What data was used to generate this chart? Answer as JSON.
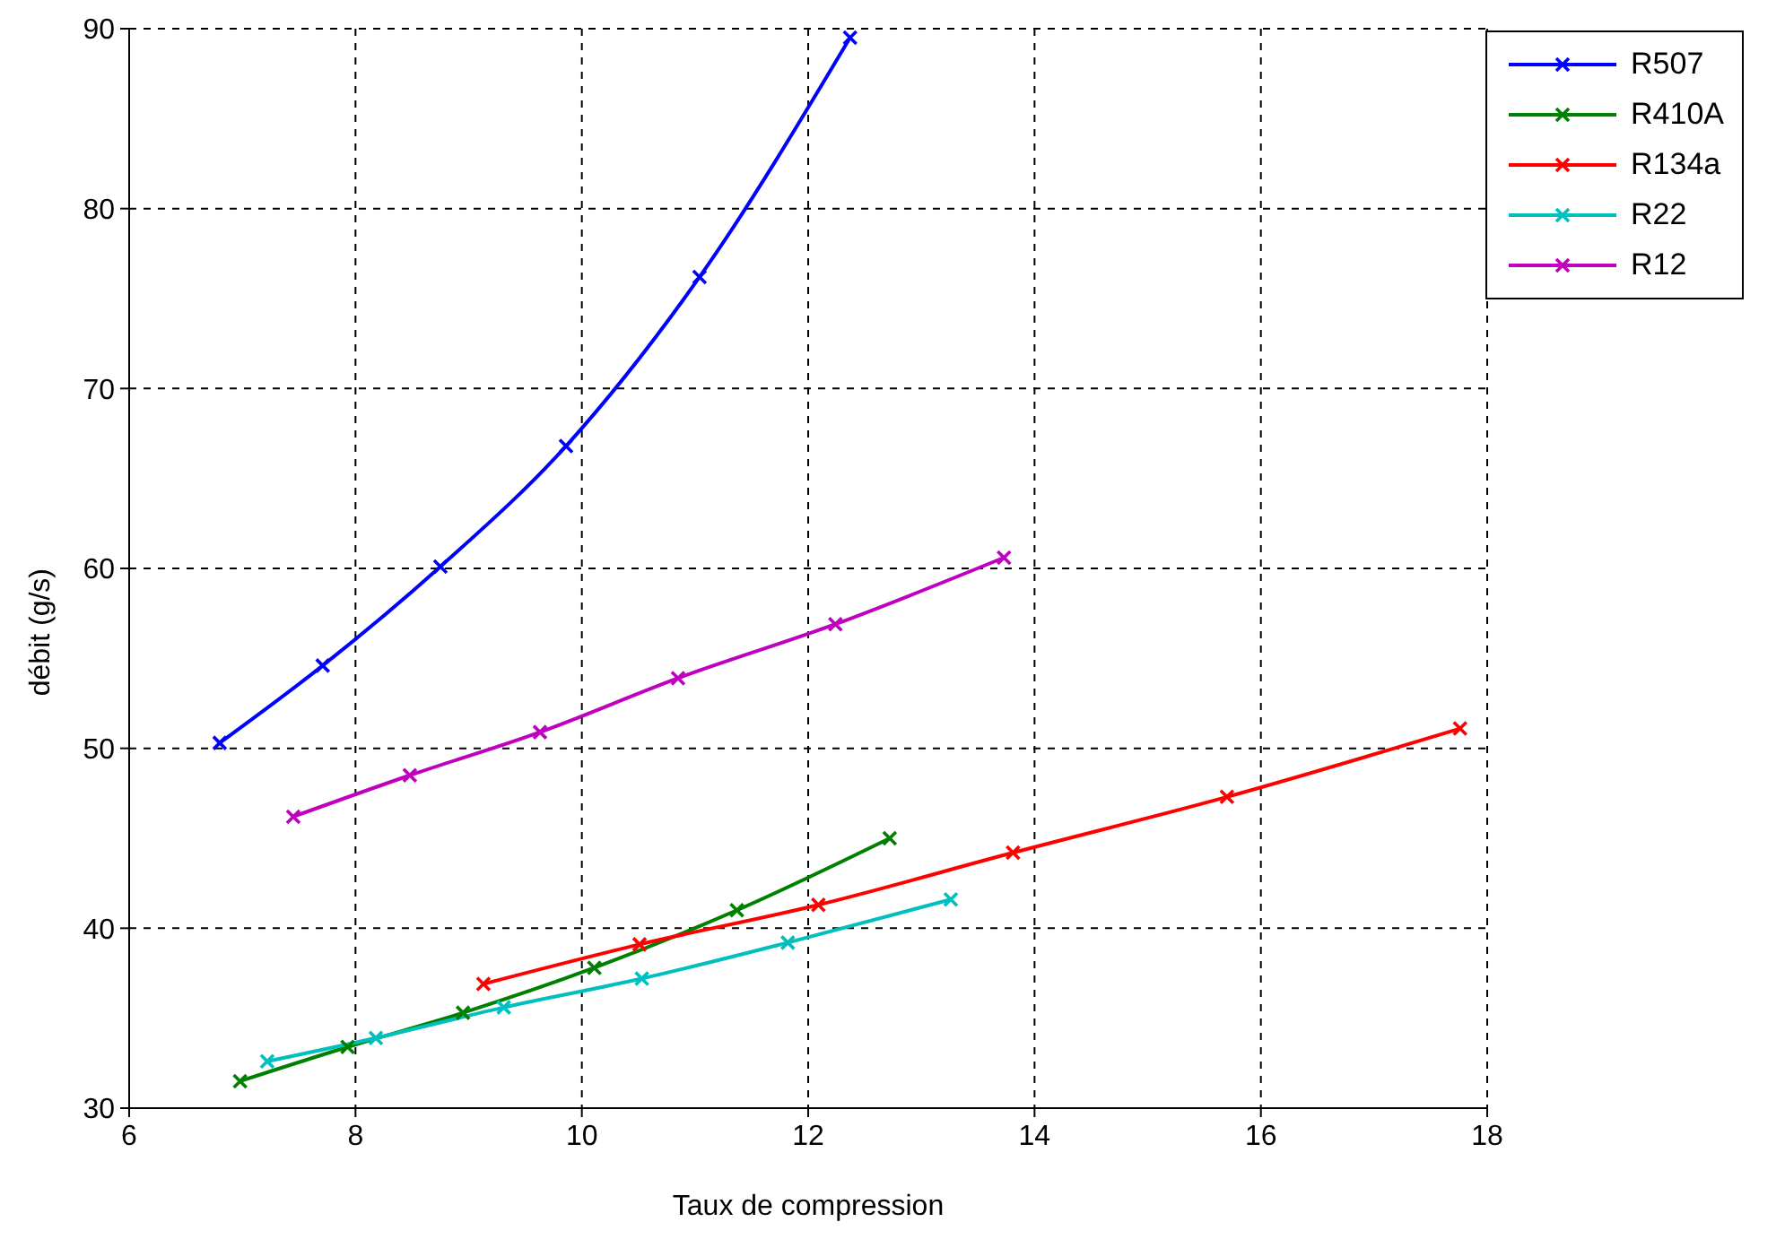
{
  "chart_data": {
    "type": "line",
    "xlabel": "Taux de compression",
    "ylabel": "débit (g/s)",
    "xlim": [
      6,
      18
    ],
    "xticks": [
      6,
      8,
      10,
      12,
      14,
      16,
      18
    ],
    "ylim": [
      30,
      90
    ],
    "yticks": [
      30,
      40,
      50,
      60,
      70,
      80,
      90
    ],
    "grid": true,
    "legend": "top right",
    "marker": "cross",
    "line_style": "solid",
    "series": [
      {
        "name": "R507",
        "color": "#0000ff",
        "x": [
          6.8,
          7.71,
          8.75,
          9.86,
          11.04,
          12.37
        ],
        "values": [
          50.3,
          54.6,
          60.1,
          66.8,
          76.2,
          89.5
        ]
      },
      {
        "name": "R410A",
        "color": "#008000",
        "x": [
          6.98,
          7.93,
          8.95,
          10.11,
          11.37,
          12.72
        ],
        "values": [
          31.5,
          33.4,
          35.3,
          37.8,
          41.0,
          45.0
        ]
      },
      {
        "name": "R134a",
        "color": "#ff0000",
        "x": [
          9.13,
          10.51,
          12.09,
          13.81,
          15.7,
          17.76
        ],
        "values": [
          36.9,
          39.1,
          41.3,
          44.2,
          47.3,
          51.1
        ]
      },
      {
        "name": "R22",
        "color": "#00bfbf",
        "x": [
          7.22,
          8.18,
          9.31,
          10.53,
          11.82,
          13.26
        ],
        "values": [
          32.6,
          33.9,
          35.6,
          37.2,
          39.2,
          41.6
        ]
      },
      {
        "name": "R12",
        "color": "#bf00bf",
        "x": [
          7.45,
          8.48,
          9.63,
          10.85,
          12.24,
          13.73
        ],
        "values": [
          46.2,
          48.5,
          50.9,
          53.9,
          56.9,
          60.6
        ]
      }
    ]
  }
}
